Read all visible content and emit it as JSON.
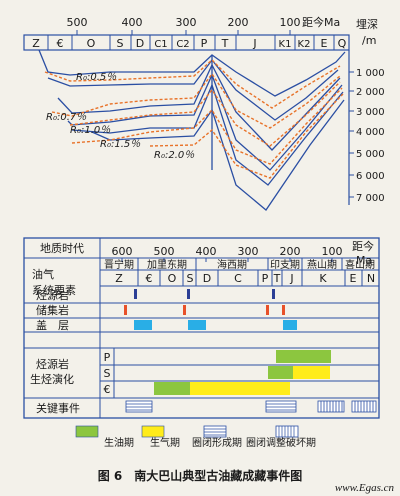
{
  "top_panel": {
    "time_ticks": [
      "500",
      "400",
      "300",
      "200",
      "100"
    ],
    "time_unit_label": "距今Ma",
    "periods": [
      "Z",
      "€",
      "O",
      "S",
      "D",
      "C1",
      "C2",
      "P",
      "T",
      "J",
      "K1",
      "K2",
      "E",
      "Q"
    ],
    "depth_label": "埋深\n/m",
    "depth_ticks": [
      "1 000",
      "2 000",
      "3 000",
      "4 000",
      "5 000",
      "6 000",
      "7 000"
    ],
    "ro_labels": [
      "R₀:0.5％",
      "R₀:0.7％",
      "R₀:1.0％",
      "R₀:1.5％",
      "R₀:2.0％"
    ],
    "colors": {
      "burial_curves": "#2b4fa3",
      "ro_isolines": "#e8732a",
      "grid": "#2b4fa3"
    }
  },
  "bottom_panel": {
    "geologic_time_label": "地质时代",
    "time_ticks": [
      "600",
      "500",
      "400",
      "300",
      "200",
      "100"
    ],
    "time_unit_label": "距今\nMa",
    "tectonic_stages": [
      "晋宁期",
      "加里东期",
      "海西期",
      "印支期",
      "燕山期",
      "喜山期"
    ],
    "row_header": "油气\n系统要素",
    "periods": [
      "Z",
      "€",
      "O",
      "S",
      "D",
      "C",
      "P",
      "T",
      "J",
      "K",
      "E",
      "N"
    ],
    "rows": [
      "烃源岩",
      "储集岩",
      "盖　层",
      "烃源岩\n生烃演化",
      "关键事件"
    ],
    "evolution_sublabels": [
      "P",
      "S",
      "€"
    ],
    "colors": {
      "source_rock": "#2b3f95",
      "reservoir": "#e8512a",
      "seal": "#29aee6",
      "oil": "#8cc63f",
      "gas": "#ffec1a"
    }
  },
  "legend": {
    "items": [
      "生油期",
      "生气期",
      "圈闭形成期",
      "圈闭调整破坏期"
    ]
  },
  "caption": "图 6　南大巴山典型古油藏成藏事件图",
  "watermark": "www.Egas.cn"
}
